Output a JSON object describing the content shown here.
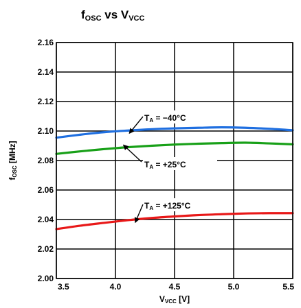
{
  "chart_data": {
    "type": "line",
    "title": {
      "main": "f",
      "main_sub": "OSC",
      "vs": " vs V",
      "vs_sub": "VCC"
    },
    "xlabel": {
      "main": "V",
      "sub": "VCC",
      "rest": " [V]"
    },
    "ylabel": {
      "main": "f",
      "sub": "OSC",
      "rest": " [MHz]"
    },
    "xlim": [
      3.5,
      5.5
    ],
    "ylim": [
      2.0,
      2.16
    ],
    "x_ticks": [
      "3.5",
      "4.0",
      "4.5",
      "5.0",
      "5.5"
    ],
    "y_ticks": [
      "2.00",
      "2.02",
      "2.04",
      "2.06",
      "2.08",
      "2.10",
      "2.12",
      "2.14",
      "2.16"
    ],
    "grid": true,
    "series": [
      {
        "name": "T_A = −40°C",
        "color": "#1f6fe0",
        "x": [
          3.5,
          3.7,
          3.9,
          4.1,
          4.3,
          4.5,
          4.7,
          4.9,
          5.1,
          5.3,
          5.5
        ],
        "y": [
          2.0955,
          2.0975,
          2.0992,
          2.1003,
          2.1012,
          2.1018,
          2.1022,
          2.1025,
          2.1022,
          2.1015,
          2.1005
        ]
      },
      {
        "name": "T_A = +25°C",
        "color": "#18a018",
        "x": [
          3.5,
          3.7,
          3.9,
          4.1,
          4.3,
          4.5,
          4.7,
          4.9,
          5.1,
          5.3,
          5.5
        ],
        "y": [
          2.0845,
          2.0862,
          2.0877,
          2.089,
          2.09,
          2.0908,
          2.0914,
          2.0918,
          2.0921,
          2.0916,
          2.091
        ]
      },
      {
        "name": "T_A = +125°C",
        "color": "#e81818",
        "x": [
          3.5,
          3.7,
          3.9,
          4.1,
          4.3,
          4.5,
          4.7,
          4.9,
          5.1,
          5.3,
          5.5
        ],
        "y": [
          2.0335,
          2.0358,
          2.0377,
          2.0395,
          2.041,
          2.0421,
          2.043,
          2.0436,
          2.0441,
          2.0443,
          2.0443
        ]
      }
    ],
    "annotations": [
      {
        "series": 0,
        "label_main": "T",
        "label_sub": "A",
        "label_rest": " = −40°C"
      },
      {
        "series": 1,
        "label_main": "T",
        "label_sub": "A",
        "label_rest": " = +25°C"
      },
      {
        "series": 2,
        "label_main": "T",
        "label_sub": "A",
        "label_rest": " = +125°C"
      }
    ]
  }
}
